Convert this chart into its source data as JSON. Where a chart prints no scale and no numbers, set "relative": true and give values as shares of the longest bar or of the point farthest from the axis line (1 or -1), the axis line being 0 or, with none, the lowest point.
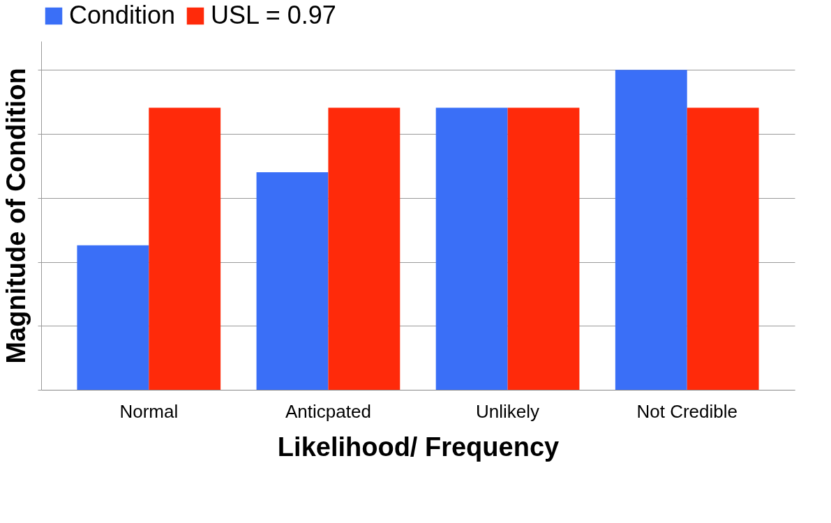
{
  "chart_data": {
    "type": "bar",
    "relative": true,
    "xlabel": "Likelihood/ Frequency",
    "ylabel": "Magnitude of Condition",
    "categories": [
      "Normal",
      "Anticpated",
      "Unlikely",
      "Not Credible"
    ],
    "series": [
      {
        "name": "Condition",
        "color": "#3a6ff7",
        "values": [
          0.452,
          0.68,
          0.882,
          1
        ]
      },
      {
        "name": "USL = 0.97",
        "color": "#ff2a0a",
        "values": [
          0.882,
          0.882,
          0.882,
          0.882
        ]
      }
    ],
    "grid": "y",
    "legend": "top"
  }
}
